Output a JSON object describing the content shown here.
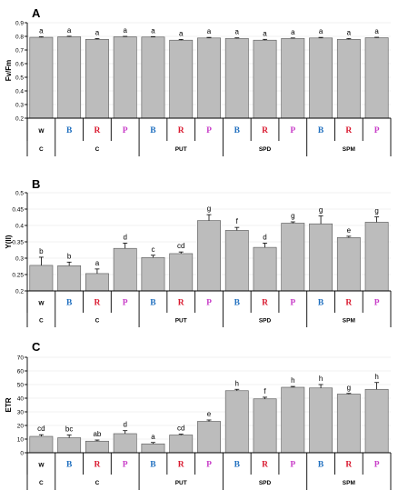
{
  "chart_data": [
    {
      "type": "bar",
      "panel_label": "A",
      "ylabel": "Fv/Fm",
      "ylim": [
        0.2,
        0.9
      ],
      "yticks": [
        "0.2",
        "0.3",
        "0.4",
        "0.5",
        "0.6",
        "0.7",
        "0.8",
        "0.9"
      ],
      "grid": true,
      "categories": [
        "W",
        "B",
        "R",
        "P",
        "B",
        "R",
        "P",
        "B",
        "R",
        "P",
        "B",
        "R",
        "P"
      ],
      "groups": [
        "C",
        "C",
        "PUT",
        "SPD",
        "SPM"
      ],
      "values": [
        0.793,
        0.797,
        0.778,
        0.797,
        0.795,
        0.772,
        0.788,
        0.785,
        0.772,
        0.785,
        0.788,
        0.778,
        0.79
      ],
      "errors": [
        0.004,
        0.004,
        0.006,
        0.003,
        0.003,
        0.005,
        0.004,
        0.004,
        0.006,
        0.003,
        0.004,
        0.006,
        0.003
      ],
      "letters": [
        "a",
        "a",
        "a",
        "a",
        "a",
        "a",
        "a",
        "a",
        "a",
        "a",
        "a",
        "a",
        "a"
      ]
    },
    {
      "type": "bar",
      "panel_label": "B",
      "ylabel": "Y(II)",
      "ylim": [
        0.2,
        0.5
      ],
      "yticks": [
        "0.2",
        "0.25",
        "0.3",
        "0.35",
        "0.4",
        "0.45",
        "0.5"
      ],
      "grid": true,
      "categories": [
        "W",
        "B",
        "R",
        "P",
        "B",
        "R",
        "P",
        "B",
        "R",
        "P",
        "B",
        "R",
        "P"
      ],
      "groups": [
        "C",
        "C",
        "PUT",
        "SPD",
        "SPM"
      ],
      "values": [
        0.278,
        0.277,
        0.253,
        0.33,
        0.302,
        0.314,
        0.415,
        0.385,
        0.333,
        0.407,
        0.405,
        0.363,
        0.41
      ],
      "errors": [
        0.025,
        0.011,
        0.014,
        0.016,
        0.007,
        0.005,
        0.018,
        0.009,
        0.013,
        0.004,
        0.024,
        0.004,
        0.016
      ],
      "letters": [
        "b",
        "b",
        "a",
        "d",
        "c",
        "cd",
        "g",
        "f",
        "d",
        "g",
        "g",
        "e",
        "g"
      ]
    },
    {
      "type": "bar",
      "panel_label": "C",
      "ylabel": "ETR",
      "ylim": [
        0,
        70
      ],
      "yticks": [
        "0",
        "10",
        "20",
        "30",
        "40",
        "50",
        "60",
        "70"
      ],
      "grid": true,
      "categories": [
        "W",
        "B",
        "R",
        "P",
        "B",
        "R",
        "P",
        "B",
        "R",
        "P",
        "B",
        "R",
        "P"
      ],
      "groups": [
        "C",
        "C",
        "PUT",
        "SPD",
        "SPM"
      ],
      "values": [
        12.0,
        11.0,
        8.5,
        14.0,
        6.5,
        13.0,
        23.0,
        45.5,
        39.5,
        48.0,
        47.5,
        43.0,
        46.5
      ],
      "errors": [
        1.2,
        2.0,
        0.8,
        2.2,
        1.0,
        0.6,
        1.0,
        1.0,
        1.2,
        0.6,
        2.5,
        0.5,
        5.0
      ],
      "letters": [
        "cd",
        "bc",
        "ab",
        "d",
        "a",
        "cd",
        "e",
        "h",
        "f",
        "h",
        "h",
        "g",
        "h"
      ]
    }
  ],
  "letter_colors": {
    "W": "#000000",
    "B": "#1f6fbf",
    "R": "#d9192f",
    "P": "#c83cc8"
  }
}
